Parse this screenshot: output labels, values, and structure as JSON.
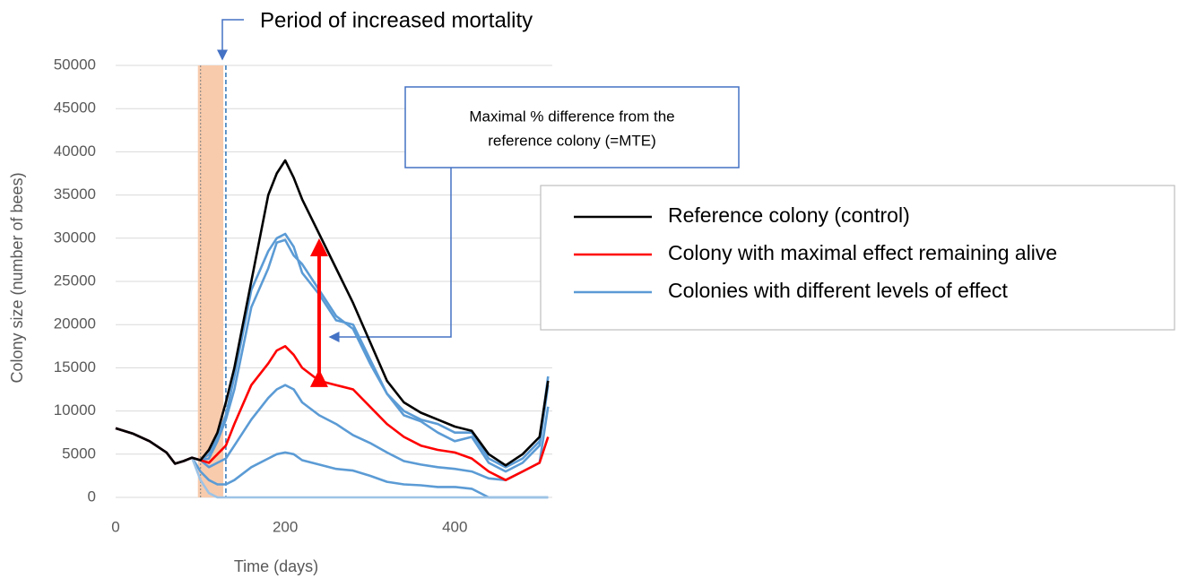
{
  "chart_data": {
    "type": "line",
    "x": [
      0,
      20,
      40,
      60,
      70,
      80,
      90,
      100,
      110,
      120,
      130,
      140,
      160,
      180,
      190,
      200,
      210,
      220,
      240,
      260,
      280,
      300,
      320,
      340,
      360,
      380,
      400,
      420,
      440,
      460,
      480,
      500,
      510
    ],
    "series": [
      {
        "name": "Colonies with different levels of effect",
        "color": "#5b9bd5",
        "values": [
          8000,
          7400,
          6500,
          5200,
          3900,
          4200,
          4600,
          4300,
          5000,
          7000,
          9500,
          14000,
          24000,
          28500,
          30000,
          30500,
          29000,
          26000,
          23500,
          20500,
          20000,
          16000,
          12000,
          10000,
          9000,
          8500,
          7500,
          7500,
          4500,
          3500,
          4500,
          6500,
          14000
        ]
      },
      {
        "color": "#5b9bd5",
        "values": [
          8000,
          7400,
          6500,
          5200,
          3900,
          4200,
          4600,
          4300,
          4500,
          6500,
          9000,
          12500,
          22000,
          26500,
          29500,
          29800,
          28000,
          27000,
          24000,
          21000,
          19500,
          15500,
          12000,
          9500,
          8800,
          7500,
          6500,
          7000,
          4000,
          3000,
          4000,
          6000,
          13000
        ]
      },
      {
        "color": "#5b9bd5",
        "values": [
          8000,
          7400,
          6500,
          5200,
          3900,
          4200,
          4600,
          4300,
          3500,
          4000,
          4500,
          6000,
          9000,
          11500,
          12500,
          13000,
          12500,
          11000,
          9500,
          8500,
          7200,
          6300,
          5200,
          4200,
          3800,
          3500,
          3300,
          3000,
          2200,
          2000,
          3000,
          4000,
          10500
        ]
      },
      {
        "color": "#5b9bd5",
        "values": [
          8000,
          7400,
          6500,
          5200,
          3900,
          4200,
          4600,
          3000,
          2000,
          1500,
          1500,
          2000,
          3500,
          4500,
          5000,
          5200,
          5000,
          4300,
          3800,
          3300,
          3100,
          2500,
          1800,
          1500,
          1400,
          1200,
          1200,
          1000,
          0,
          0,
          0,
          0,
          0
        ]
      },
      {
        "color": "#9dc3e6",
        "values": [
          8000,
          7400,
          6500,
          5200,
          3900,
          4200,
          4600,
          2000,
          500,
          0,
          0,
          0,
          0,
          0,
          0,
          0,
          0,
          0,
          0,
          0,
          0,
          0,
          0,
          0,
          0,
          0,
          0,
          0,
          0,
          0,
          0,
          0,
          0
        ]
      },
      {
        "name": "Colony with maximal effect remaining alive",
        "color": "#ff0000",
        "values": [
          8000,
          7400,
          6500,
          5200,
          3900,
          4200,
          4600,
          4300,
          4000,
          5000,
          6000,
          8500,
          13000,
          15500,
          17000,
          17500,
          16500,
          15000,
          13500,
          13000,
          12500,
          10500,
          8500,
          7000,
          6000,
          5500,
          5200,
          4500,
          3000,
          2000,
          3000,
          4000,
          7000
        ]
      },
      {
        "name": "Reference colony (control)",
        "color": "#000000",
        "values": [
          8000,
          7400,
          6500,
          5200,
          3900,
          4200,
          4600,
          4300,
          5500,
          7500,
          11000,
          15000,
          25000,
          35000,
          37500,
          39000,
          37000,
          34500,
          30500,
          26500,
          22500,
          18000,
          13500,
          11000,
          9800,
          9000,
          8200,
          7700,
          5000,
          3700,
          5000,
          7000,
          13500
        ]
      }
    ],
    "x_label": "Time (days)",
    "y_label": "Colony size (number of bees)",
    "xlim": [
      0,
      515
    ],
    "xticks": [
      0,
      200,
      400
    ],
    "ylim": [
      0,
      50000
    ],
    "yticks": [
      0,
      5000,
      10000,
      15000,
      20000,
      25000,
      30000,
      35000,
      40000,
      45000,
      50000
    ],
    "grid": true,
    "mortality_period": [
      97,
      127
    ],
    "period_end_line": 130,
    "period_label": "Period of increased mortality",
    "difference_arrow": {
      "x": 240,
      "from": 13500,
      "to": 30500
    },
    "difference_label": [
      "Maximal % difference from the",
      "reference colony (=MTE)"
    ],
    "legend_position": "right"
  }
}
